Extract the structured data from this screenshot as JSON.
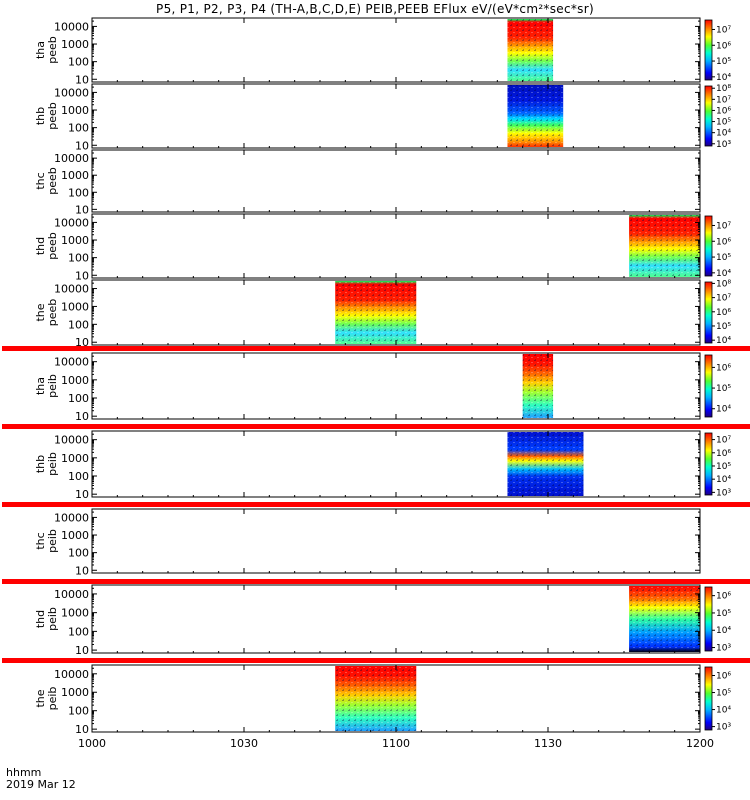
{
  "title": "P5, P1, P2, P3, P4 (TH-A,B,C,D,E) PEIB,PEEB EFlux eV/(eV*cm²*sec*sr)",
  "footer": {
    "time_label": "hhmm",
    "date_label": "2019 Mar 12"
  },
  "colors": {
    "red_band": "#ff0000",
    "frame": "#000000"
  },
  "chart_data": {
    "type": "heatmap",
    "title": "P5, P1, P2, P3, P4 (TH-A,B,C,D,E) PEIB,PEEB EFlux eV/(eV*cm²*sec*sr)",
    "x_axis": {
      "range": [
        "10:00",
        "12:00"
      ],
      "tick_labels": [
        "1000",
        "1030",
        "1100",
        "1130",
        "1200"
      ],
      "ticks_minutes": [
        0,
        30,
        60,
        90,
        120
      ]
    },
    "y_axis": {
      "scale": "log",
      "range": [
        7,
        30000
      ],
      "tick_labels": [
        "10",
        "100",
        "1000",
        "10000"
      ],
      "tick_values": [
        10,
        100,
        1000,
        10000
      ]
    },
    "panels": [
      {
        "ylabel": [
          "tha",
          "peeb"
        ],
        "data_start": "11:22",
        "data_end": "11:31",
        "colorbar": {
          "scale": "log",
          "tick_labels": [
            "10⁴",
            "10⁵",
            "10⁶",
            "10⁷"
          ],
          "tick_exponents": [
            4,
            5,
            6,
            7
          ],
          "range_exponents": [
            3.8,
            7.6
          ],
          "title": ""
        }
      },
      {
        "ylabel": [
          "thb",
          "peeb"
        ],
        "data_start": "11:22",
        "data_end": "11:33",
        "colorbar": {
          "scale": "log",
          "tick_labels": [
            "10³",
            "10⁴",
            "10⁵",
            "10⁶",
            "10⁷",
            "10⁸"
          ],
          "tick_exponents": [
            3,
            4,
            5,
            6,
            7,
            8
          ],
          "range_exponents": [
            2.8,
            8.2
          ],
          "title": ""
        }
      },
      {
        "ylabel": [
          "thc",
          "peeb"
        ],
        "colorbar": {
          "title": ""
        }
      },
      {
        "ylabel": [
          "thd",
          "peeb"
        ],
        "data_start": "11:46",
        "data_end": "12:00",
        "colorbar": {
          "scale": "log",
          "tick_labels": [
            "10⁴",
            "10⁵",
            "10⁶",
            "10⁷"
          ],
          "tick_exponents": [
            4,
            5,
            6,
            7
          ],
          "range_exponents": [
            3.8,
            7.6
          ],
          "title": ""
        }
      },
      {
        "ylabel": [
          "the",
          "peeb"
        ],
        "data_start": "10:48",
        "data_end": "11:04",
        "colorbar": {
          "scale": "log",
          "tick_labels": [
            "10⁴",
            "10⁵",
            "10⁶",
            "10⁷",
            "10⁸"
          ],
          "tick_exponents": [
            4,
            5,
            6,
            7,
            8
          ],
          "range_exponents": [
            3.8,
            8.1
          ],
          "title": ""
        }
      },
      {
        "ylabel": [
          "tha",
          "peib"
        ],
        "red_band": true,
        "data_start": "11:25",
        "data_end": "11:31",
        "colorbar": {
          "scale": "log",
          "tick_labels": [
            "10⁴",
            "10⁵",
            "10⁶"
          ],
          "tick_exponents": [
            4,
            5,
            6
          ],
          "range_exponents": [
            3.6,
            6.6
          ],
          "title": ""
        }
      },
      {
        "ylabel": [
          "thb",
          "peib"
        ],
        "red_band": true,
        "data_start": "11:22",
        "data_end": "11:37",
        "colorbar": {
          "scale": "log",
          "tick_labels": [
            "10³",
            "10⁴",
            "10⁵",
            "10⁶",
            "10⁷"
          ],
          "tick_exponents": [
            3,
            4,
            5,
            6,
            7
          ],
          "range_exponents": [
            2.8,
            7.5
          ],
          "title": ""
        }
      },
      {
        "ylabel": [
          "thc",
          "peib"
        ],
        "red_band": true,
        "colorbar": {
          "title": ""
        }
      },
      {
        "ylabel": [
          "thd",
          "peib"
        ],
        "red_band": true,
        "data_start": "11:46",
        "data_end": "12:00",
        "colorbar": {
          "scale": "log",
          "tick_labels": [
            "10³",
            "10⁴",
            "10⁵",
            "10⁶"
          ],
          "tick_exponents": [
            3,
            4,
            5,
            6
          ],
          "range_exponents": [
            2.8,
            6.5
          ],
          "title": ""
        }
      },
      {
        "ylabel": [
          "the",
          "peib"
        ],
        "red_band": true,
        "data_start": "10:48",
        "data_end": "11:04",
        "colorbar": {
          "scale": "log",
          "tick_labels": [
            "10³",
            "10⁴",
            "10⁵",
            "10⁶"
          ],
          "tick_exponents": [
            3,
            4,
            5,
            6
          ],
          "range_exponents": [
            2.8,
            6.5
          ],
          "title": ""
        }
      }
    ]
  }
}
